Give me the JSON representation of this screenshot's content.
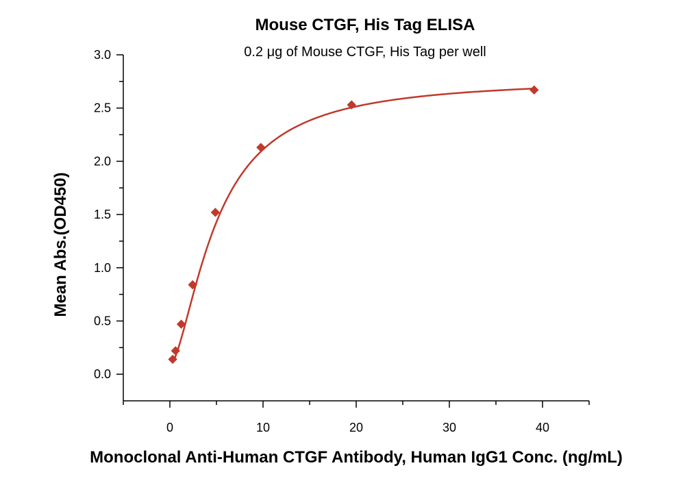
{
  "chart_data": {
    "type": "scatter",
    "title": "Mouse CTGF, His Tag ELISA",
    "subtitle": "0.2 μg of Mouse CTGF, His Tag per well",
    "xlabel": "Monoclonal Anti-Human CTGF Antibody, Human IgG1 Conc. (ng/mL)",
    "ylabel": "Mean Abs.(OD450)",
    "xlim": [
      -5,
      45
    ],
    "ylim": [
      -0.25,
      3.0
    ],
    "x_major_ticks": [
      0,
      10,
      20,
      30,
      40
    ],
    "x_minor_ticks": [
      -5,
      5,
      15,
      25,
      35,
      45
    ],
    "x_tick_labels": [
      "0",
      "10",
      "20",
      "30",
      "40"
    ],
    "y_major_ticks": [
      0.0,
      0.5,
      1.0,
      1.5,
      2.0,
      2.5,
      3.0
    ],
    "y_minor_ticks": [
      0.25,
      0.75,
      1.25,
      1.75,
      2.25,
      2.75
    ],
    "y_tick_labels": [
      "0.0",
      "0.5",
      "1.0",
      "1.5",
      "2.0",
      "2.5",
      "3.0"
    ],
    "grid": false,
    "series": [
      {
        "color": "#c0392b",
        "marker": "diamond",
        "x": [
          0.3,
          0.61,
          1.22,
          2.44,
          4.88,
          9.77,
          19.5,
          39.1
        ],
        "y": [
          0.14,
          0.22,
          0.47,
          0.84,
          1.52,
          2.13,
          2.53,
          2.67
        ]
      }
    ],
    "fit_curve": {
      "model": "4PL",
      "color": "#c0392b",
      "bottom": 0.08,
      "top": 2.78,
      "ec50": 5.0,
      "hill": 1.6
    }
  }
}
